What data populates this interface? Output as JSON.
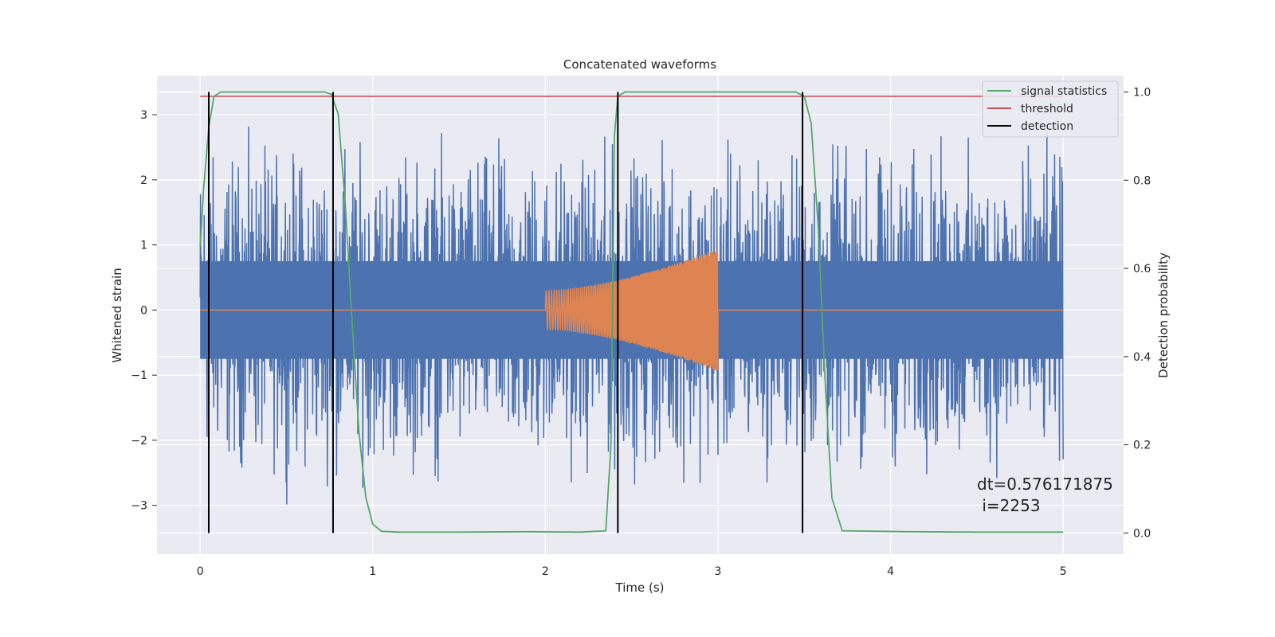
{
  "chart_data": {
    "type": "line",
    "title": "Concatenated waveforms",
    "xlabel": "Time (s)",
    "ylabel_left": "Whitened strain",
    "ylabel_right": "Detection probability",
    "xlim": [
      -0.25,
      5.35
    ],
    "ylim_left": [
      -3.75,
      3.6
    ],
    "ylim_right": [
      -0.048,
      1.037
    ],
    "xticks": [
      0,
      1,
      2,
      3,
      4,
      5
    ],
    "xtick_labels": [
      "0",
      "1",
      "2",
      "3",
      "4",
      "5"
    ],
    "yticks_left": [
      3,
      2,
      1,
      0,
      -1,
      -2,
      -3
    ],
    "ytick_labels_left": [
      "3",
      "2",
      "1",
      "0",
      "−1",
      "−2",
      "−3"
    ],
    "yticks_right": [
      1.0,
      0.8,
      0.6,
      0.4,
      0.2,
      0.0
    ],
    "ytick_labels_right": [
      "1.0",
      "0.8",
      "0.6",
      "0.4",
      "0.2",
      "0.0"
    ],
    "grid": true,
    "legend_position": "top-right",
    "colors": {
      "strain": "#4c72b0",
      "template": "#dd8452",
      "signal_statistics": "#55a868",
      "threshold": "#c44e52",
      "detection": "#000000",
      "axes_background": "#eaeaf2",
      "grid": "#ffffff"
    },
    "series": [
      {
        "name": "",
        "role": "strain",
        "axis": "left",
        "x_range": [
          0,
          5
        ],
        "envelope": {
          "core": 0.75,
          "peak_max": 3.2,
          "peak_min": -3.45
        }
      },
      {
        "name": "",
        "role": "template",
        "axis": "left",
        "x_range": [
          0,
          5
        ],
        "chirp": {
          "start": 2.0,
          "end": 3.0,
          "amplitude_start": 0.3,
          "amplitude_end": 0.95
        }
      },
      {
        "name": "signal statistics",
        "role": "signal_statistics",
        "axis": "right",
        "x": [
          0,
          0.02,
          0.05,
          0.08,
          0.12,
          0.3,
          0.6,
          0.72,
          0.76,
          0.8,
          0.84,
          0.88,
          0.92,
          0.96,
          1.0,
          1.05,
          1.15,
          1.5,
          1.9,
          2.2,
          2.35,
          2.38,
          2.4,
          2.42,
          2.46,
          2.55,
          3.0,
          3.45,
          3.5,
          3.54,
          3.58,
          3.62,
          3.66,
          3.72,
          4.1,
          4.5,
          5.0
        ],
        "y": [
          0.65,
          0.78,
          0.92,
          0.99,
          1.0,
          1.0,
          1.0,
          1.0,
          0.995,
          0.95,
          0.75,
          0.48,
          0.23,
          0.08,
          0.02,
          0.004,
          0.002,
          0.002,
          0.003,
          0.002,
          0.005,
          0.2,
          0.9,
          0.99,
          1.0,
          1.0,
          1.0,
          1.0,
          0.99,
          0.93,
          0.7,
          0.35,
          0.08,
          0.005,
          0.003,
          0.002,
          0.002
        ]
      },
      {
        "name": "threshold",
        "role": "threshold",
        "axis": "right",
        "x": [
          0,
          5
        ],
        "y": [
          0.99,
          0.99
        ]
      },
      {
        "name": "detection",
        "role": "detection",
        "axis": "right",
        "vlines": [
          0.05,
          0.77,
          2.42,
          3.49
        ],
        "ymin": 0.0,
        "ymax": 1.0
      }
    ],
    "legend": [
      "signal statistics",
      "threshold",
      "detection"
    ],
    "annotation": {
      "line1": "dt=0.576171875",
      "line2": " i=2253",
      "x": 4.5,
      "y_prob": 0.1
    }
  }
}
